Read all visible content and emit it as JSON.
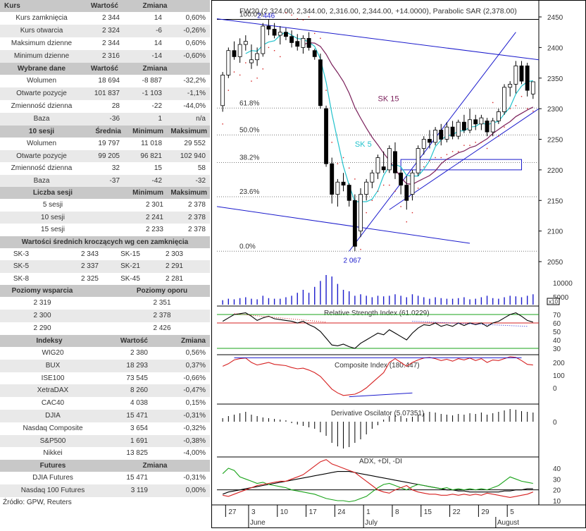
{
  "kurs": {
    "headers": [
      "Kurs",
      "Wartość",
      "Zmiana"
    ],
    "rows": [
      [
        "Kurs zamknięcia",
        "2 344",
        "14",
        "0,60%"
      ],
      [
        "Kurs otwarcia",
        "2 324",
        "-6",
        "-0,26%"
      ],
      [
        "Maksimum dzienne",
        "2 344",
        "14",
        "0,60%"
      ],
      [
        "Minimum dzienne",
        "2 316",
        "-14",
        "-0,60%"
      ]
    ]
  },
  "dane": {
    "headers": [
      "Wybrane dane",
      "Wartość",
      "Zmiana"
    ],
    "rows": [
      [
        "Wolumen",
        "18 694",
        "-8 887",
        "-32,2%"
      ],
      [
        "Otwarte pozycje",
        "101 837",
        "-1 103",
        "-1,1%"
      ],
      [
        "Zmienność dzienna",
        "28",
        "-22",
        "-44,0%"
      ],
      [
        "Baza",
        "-36",
        "1",
        "n/a"
      ]
    ]
  },
  "sesji10": {
    "headers": [
      "10 sesji",
      "Średnia",
      "Minimum",
      "Maksimum"
    ],
    "rows": [
      [
        "Wolumen",
        "19 797",
        "11 018",
        "29 552"
      ],
      [
        "Otwarte pozycje",
        "99 205",
        "96 821",
        "102 940"
      ],
      [
        "Zmienność dzienna",
        "32",
        "15",
        "58"
      ],
      [
        "Baza",
        "-37",
        "-42",
        "-32"
      ]
    ]
  },
  "liczba": {
    "headers": [
      "Liczba sesji",
      "Minimum",
      "Maksimum"
    ],
    "rows": [
      [
        "5 sesji",
        "2 301",
        "2 378"
      ],
      [
        "10 sesji",
        "2 241",
        "2 378"
      ],
      [
        "15 sesji",
        "2 233",
        "2 378"
      ]
    ]
  },
  "srednie": {
    "header": "Wartości średnich kroczących wg cen zamknięcia",
    "rows": [
      [
        "SK-3",
        "2 343",
        "SK-15",
        "2 303"
      ],
      [
        "SK-5",
        "2 337",
        "SK-21",
        "2 291"
      ],
      [
        "SK-8",
        "2 325",
        "SK-45",
        "2 281"
      ]
    ]
  },
  "poziomy": {
    "headers": [
      "Poziomy wsparcia",
      "Poziomy oporu"
    ],
    "rows": [
      [
        "2 319",
        "2 351"
      ],
      [
        "2 300",
        "2 378"
      ],
      [
        "2 290",
        "2 426"
      ]
    ]
  },
  "indeksy": {
    "headers": [
      "Indeksy",
      "Wartość",
      "Zmiana"
    ],
    "rows": [
      [
        "WIG20",
        "2 380",
        "0,56%"
      ],
      [
        "BUX",
        "18 293",
        "0,37%"
      ],
      [
        "ISE100",
        "73 545",
        "-0,66%"
      ],
      [
        "XetraDAX",
        "8 260",
        "-0,47%"
      ],
      [
        "CAC40",
        "4 038",
        "0,15%"
      ],
      [
        "DJIA",
        "15 471",
        "-0,31%"
      ],
      [
        "Nasdaq Composite",
        "3 654",
        "-0,32%"
      ],
      [
        "S&P500",
        "1 691",
        "-0,38%"
      ],
      [
        "Nikkei",
        "13 825",
        "-4,00%"
      ]
    ]
  },
  "futures": {
    "headers": [
      "Futures",
      "Zmiana"
    ],
    "rows": [
      [
        "DJIA Futures",
        "15 471",
        "-0,31%"
      ],
      [
        "Nasdaq 100 Futures",
        "3 119",
        "0,00%"
      ]
    ]
  },
  "source": "Źródło: GPW, Reuters",
  "chart_data": {
    "type": "candlestick",
    "title": "FW20 (2,324.00, 2,344.00, 2,316.00, 2,344.00, +14.0000), Parabolic SAR (2,378.00)",
    "price_axis": {
      "min": 2050,
      "max": 2450,
      "ticks": [
        2050,
        2100,
        2150,
        2200,
        2250,
        2300,
        2350,
        2400,
        2450
      ]
    },
    "high_label": "2 446",
    "low_label": "2 067",
    "fib_levels": [
      {
        "label": "100.0%",
        "value": 2446
      },
      {
        "label": "61.8%",
        "value": 2301
      },
      {
        "label": "50.0%",
        "value": 2257
      },
      {
        "label": "38.2%",
        "value": 2212
      },
      {
        "label": "23.6%",
        "value": 2156
      },
      {
        "label": "0.0%",
        "value": 2067
      }
    ],
    "ma_labels": [
      "SK 15",
      "SK 5"
    ],
    "candles": [
      [
        2305,
        2360,
        2295,
        2355
      ],
      [
        2355,
        2400,
        2350,
        2395
      ],
      [
        2395,
        2410,
        2380,
        2385
      ],
      [
        2385,
        2415,
        2375,
        2405
      ],
      [
        2405,
        2420,
        2395,
        2410
      ],
      [
        2375,
        2405,
        2365,
        2380
      ],
      [
        2380,
        2400,
        2370,
        2390
      ],
      [
        2390,
        2440,
        2385,
        2435
      ],
      [
        2435,
        2446,
        2420,
        2430
      ],
      [
        2430,
        2440,
        2415,
        2420
      ],
      [
        2420,
        2435,
        2405,
        2425
      ],
      [
        2425,
        2432,
        2412,
        2418
      ],
      [
        2418,
        2428,
        2400,
        2408
      ],
      [
        2410,
        2422,
        2395,
        2402
      ],
      [
        2400,
        2420,
        2390,
        2415
      ],
      [
        2415,
        2425,
        2395,
        2400
      ],
      [
        2395,
        2398,
        2380,
        2385
      ],
      [
        2380,
        2390,
        2300,
        2305
      ],
      [
        2300,
        2305,
        2205,
        2210
      ],
      [
        2210,
        2220,
        2145,
        2160
      ],
      [
        2160,
        2185,
        2140,
        2180
      ],
      [
        2180,
        2195,
        2165,
        2175
      ],
      [
        2175,
        2178,
        2140,
        2150
      ],
      [
        2150,
        2160,
        2067,
        2075
      ],
      [
        2100,
        2170,
        2090,
        2160
      ],
      [
        2160,
        2185,
        2150,
        2180
      ],
      [
        2180,
        2200,
        2170,
        2195
      ],
      [
        2195,
        2225,
        2185,
        2220
      ],
      [
        2205,
        2230,
        2195,
        2200
      ],
      [
        2200,
        2240,
        2195,
        2235
      ],
      [
        2230,
        2245,
        2185,
        2195
      ],
      [
        2195,
        2200,
        2160,
        2175
      ],
      [
        2175,
        2190,
        2135,
        2150
      ],
      [
        2160,
        2200,
        2150,
        2195
      ],
      [
        2195,
        2240,
        2190,
        2235
      ],
      [
        2235,
        2255,
        2225,
        2250
      ],
      [
        2250,
        2265,
        2235,
        2245
      ],
      [
        2245,
        2270,
        2240,
        2265
      ],
      [
        2265,
        2275,
        2240,
        2250
      ],
      [
        2250,
        2278,
        2245,
        2270
      ],
      [
        2270,
        2280,
        2250,
        2255
      ],
      [
        2255,
        2282,
        2250,
        2278
      ],
      [
        2278,
        2290,
        2260,
        2265
      ],
      [
        2265,
        2300,
        2260,
        2282
      ],
      [
        2282,
        2290,
        2265,
        2275
      ],
      [
        2275,
        2290,
        2265,
        2285
      ],
      [
        2280,
        2285,
        2255,
        2262
      ],
      [
        2262,
        2285,
        2255,
        2280
      ],
      [
        2280,
        2300,
        2275,
        2295
      ],
      [
        2295,
        2340,
        2290,
        2335
      ],
      [
        2335,
        2345,
        2320,
        2340
      ],
      [
        2340,
        2378,
        2325,
        2370
      ],
      [
        2370,
        2378,
        2340,
        2345
      ],
      [
        2370,
        2375,
        2320,
        2330
      ],
      [
        2324,
        2344,
        2316,
        2344
      ]
    ],
    "date_labels": [
      {
        "label": "27",
        "idx": 1
      },
      {
        "label": "3",
        "idx": 5
      },
      {
        "label": "10",
        "idx": 10
      },
      {
        "label": "17",
        "idx": 15
      },
      {
        "label": "24",
        "idx": 20
      },
      {
        "label": "1",
        "idx": 25
      },
      {
        "label": "8",
        "idx": 30
      },
      {
        "label": "15",
        "idx": 35
      },
      {
        "label": "22",
        "idx": 40
      },
      {
        "label": "29",
        "idx": 45
      },
      {
        "label": "5",
        "idx": 50
      }
    ],
    "month_labels": [
      {
        "label": "June",
        "idx": 5
      },
      {
        "label": "July",
        "idx": 25
      },
      {
        "label": "August",
        "idx": 48
      }
    ],
    "volume_axis": {
      "ticks": [
        5000,
        10000
      ],
      "scale_label": "x10"
    },
    "rsi": {
      "title": "Relative Strength Index (61.0229)",
      "ticks": [
        70,
        60,
        50,
        40,
        30
      ]
    },
    "composite": {
      "title": "Composite Index (180.447)",
      "ticks": [
        200,
        100,
        0
      ]
    },
    "derivative": {
      "title": "Derivative Oscilator (5.07351)",
      "ticks": [
        0
      ]
    },
    "adx": {
      "title": "ADX, +DI, -DI",
      "ticks": [
        40,
        30,
        20,
        10
      ]
    }
  }
}
